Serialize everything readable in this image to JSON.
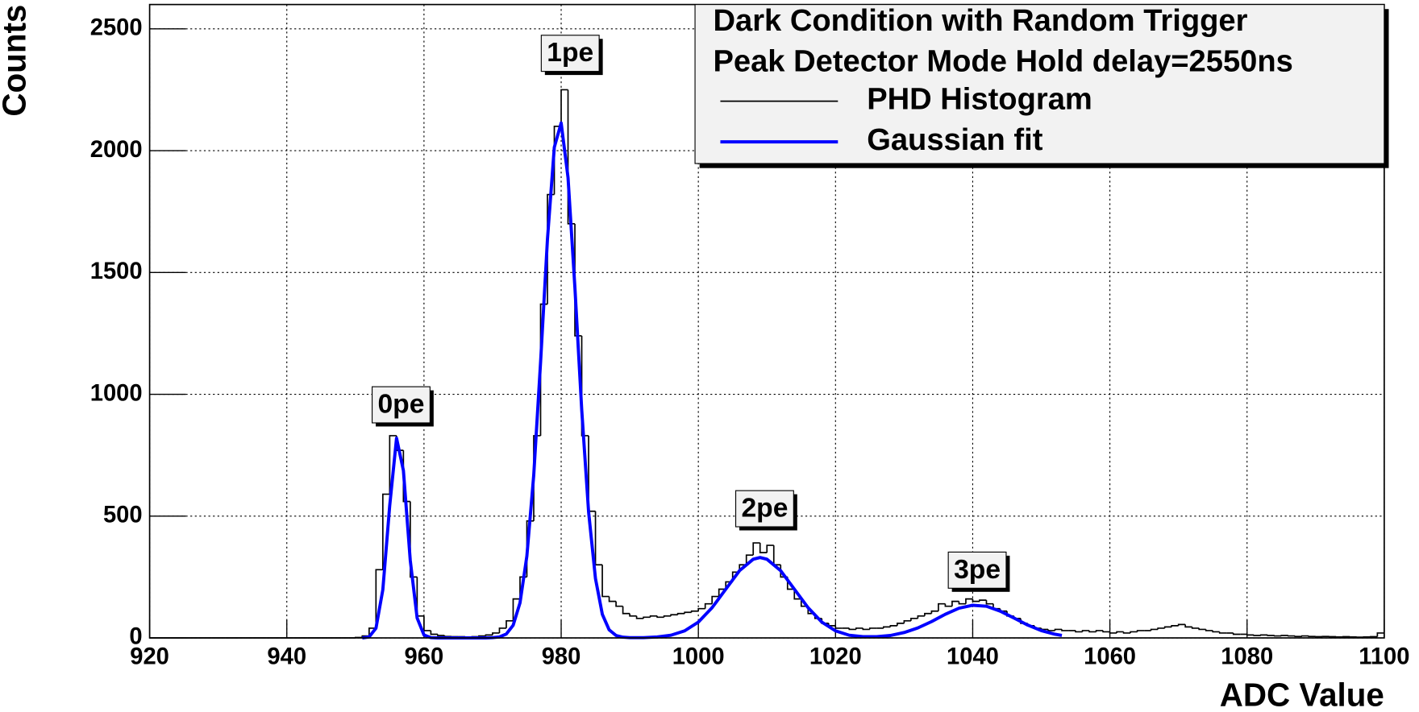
{
  "chart_data": {
    "type": "histogram",
    "x_label": "ADC Value",
    "y_label": "Counts",
    "legend_title": [
      "Dark Condition with Random Trigger",
      "Peak Detector Mode Hold delay=2550ns"
    ],
    "legend_position": "top-right",
    "grid": true,
    "xlim": [
      920,
      1100
    ],
    "ylim": [
      0,
      2600
    ],
    "xticks": [
      920,
      940,
      960,
      980,
      1000,
      1020,
      1040,
      1060,
      1080,
      1100
    ],
    "yticks": [
      0,
      500,
      1000,
      1500,
      2000,
      2500
    ],
    "annotations": [
      "0pe",
      "1pe",
      "2pe",
      "3pe"
    ],
    "bins": [
      920,
      921,
      922,
      923,
      924,
      925,
      926,
      927,
      928,
      929,
      930,
      931,
      932,
      933,
      934,
      935,
      936,
      937,
      938,
      939,
      940,
      941,
      942,
      943,
      944,
      945,
      946,
      947,
      948,
      949,
      950,
      951,
      952,
      953,
      954,
      955,
      956,
      957,
      958,
      959,
      960,
      961,
      962,
      963,
      964,
      965,
      966,
      967,
      968,
      969,
      970,
      971,
      972,
      973,
      974,
      975,
      976,
      977,
      978,
      979,
      980,
      981,
      982,
      983,
      984,
      985,
      986,
      987,
      988,
      989,
      990,
      991,
      992,
      993,
      994,
      995,
      996,
      997,
      998,
      999,
      1000,
      1001,
      1002,
      1003,
      1004,
      1005,
      1006,
      1007,
      1008,
      1009,
      1010,
      1011,
      1012,
      1013,
      1014,
      1015,
      1016,
      1017,
      1018,
      1019,
      1020,
      1021,
      1022,
      1023,
      1024,
      1025,
      1026,
      1027,
      1028,
      1029,
      1030,
      1031,
      1032,
      1033,
      1034,
      1035,
      1036,
      1037,
      1038,
      1039,
      1040,
      1041,
      1042,
      1043,
      1044,
      1045,
      1046,
      1047,
      1048,
      1049,
      1050,
      1051,
      1052,
      1053,
      1054,
      1055,
      1056,
      1057,
      1058,
      1059,
      1060,
      1061,
      1062,
      1063,
      1064,
      1065,
      1066,
      1067,
      1068,
      1069,
      1070,
      1071,
      1072,
      1073,
      1074,
      1075,
      1076,
      1077,
      1078,
      1079,
      1080,
      1081,
      1082,
      1083,
      1084,
      1085,
      1086,
      1087,
      1088,
      1089,
      1090,
      1091,
      1092,
      1093,
      1094,
      1095,
      1096,
      1097,
      1098,
      1099,
      1100
    ],
    "series": [
      {
        "name": "PHD Histogram",
        "color": "#000000",
        "values": [
          0,
          0,
          0,
          0,
          0,
          0,
          0,
          0,
          0,
          0,
          0,
          0,
          0,
          0,
          0,
          0,
          0,
          0,
          0,
          0,
          0,
          0,
          0,
          0,
          0,
          0,
          0,
          0,
          0,
          0,
          2,
          8,
          40,
          280,
          590,
          830,
          770,
          560,
          250,
          90,
          30,
          15,
          10,
          6,
          5,
          5,
          4,
          5,
          8,
          12,
          20,
          40,
          70,
          160,
          250,
          480,
          830,
          1370,
          1820,
          2100,
          2250,
          1700,
          1240,
          830,
          520,
          300,
          170,
          150,
          130,
          100,
          90,
          80,
          85,
          90,
          85,
          90,
          95,
          100,
          105,
          110,
          120,
          140,
          170,
          200,
          230,
          270,
          300,
          340,
          390,
          350,
          380,
          300,
          250,
          200,
          160,
          130,
          100,
          80,
          60,
          50,
          40,
          40,
          35,
          40,
          35,
          40,
          40,
          45,
          50,
          60,
          70,
          80,
          90,
          100,
          110,
          140,
          130,
          150,
          140,
          160,
          150,
          155,
          140,
          120,
          110,
          90,
          80,
          60,
          50,
          40,
          35,
          30,
          35,
          30,
          30,
          25,
          30,
          25,
          30,
          25,
          20,
          25,
          20,
          25,
          30,
          30,
          35,
          40,
          45,
          50,
          55,
          45,
          40,
          35,
          30,
          25,
          20,
          20,
          15,
          15,
          12,
          10,
          12,
          10,
          8,
          10,
          8,
          6,
          8,
          6,
          5,
          6,
          5,
          4,
          5,
          4,
          3,
          4,
          5,
          20
        ]
      },
      {
        "name": "Gaussian fit",
        "color": "#0000ff",
        "type": "line",
        "x": [
          951,
          952,
          953,
          954,
          955,
          956,
          957,
          958,
          959,
          960,
          961,
          962,
          966,
          969,
          970,
          971,
          972,
          973,
          974,
          975,
          976,
          977,
          978,
          979,
          980,
          981,
          982,
          983,
          984,
          985,
          986,
          987,
          988,
          989,
          990,
          992,
          994,
          996,
          998,
          1000,
          1002,
          1004,
          1006,
          1008,
          1009,
          1010,
          1012,
          1014,
          1016,
          1018,
          1020,
          1022,
          1024,
          1026,
          1028,
          1030,
          1032,
          1034,
          1036,
          1038,
          1040,
          1042,
          1044,
          1046,
          1048,
          1050,
          1052,
          1053
        ],
        "values": [
          0,
          4,
          40,
          198,
          542,
          820,
          687,
          318,
          82,
          12,
          1,
          0,
          0,
          0,
          1,
          4,
          16,
          52,
          144,
          336,
          668,
          1133,
          1636,
          2014,
          2114,
          1890,
          1440,
          935,
          517,
          244,
          97,
          33,
          10,
          3,
          1,
          1,
          4,
          11,
          29,
          65,
          124,
          200,
          276,
          323,
          330,
          323,
          276,
          200,
          124,
          65,
          29,
          11,
          5,
          5,
          10,
          22,
          41,
          67,
          97,
          122,
          134,
          130,
          110,
          82,
          53,
          30,
          15,
          10
        ]
      }
    ]
  }
}
